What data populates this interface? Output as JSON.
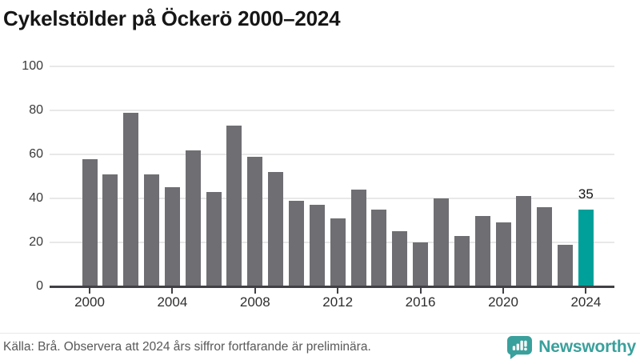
{
  "title": "Cykelstölder på Öckerö 2000–2024",
  "chart_data": {
    "type": "bar",
    "title": "Cykelstölder på Öckerö 2000–2024",
    "categories": [
      2000,
      2001,
      2002,
      2003,
      2004,
      2005,
      2006,
      2007,
      2008,
      2009,
      2010,
      2011,
      2012,
      2013,
      2014,
      2015,
      2016,
      2017,
      2018,
      2019,
      2020,
      2021,
      2022,
      2023,
      2024
    ],
    "values": [
      58,
      51,
      79,
      51,
      45,
      62,
      43,
      73,
      59,
      52,
      39,
      37,
      31,
      44,
      35,
      25,
      20,
      40,
      23,
      32,
      29,
      41,
      36,
      19,
      35
    ],
    "highlight_index": 24,
    "highlight_value_label": "35",
    "xlabel": "",
    "ylabel": "",
    "ylim": [
      0,
      100
    ],
    "yticks": [
      0,
      20,
      40,
      60,
      80,
      100
    ],
    "xtick_years": [
      2000,
      2004,
      2008,
      2012,
      2016,
      2020,
      2024
    ],
    "grid": true,
    "legend": "none",
    "colors": {
      "bar": "#6e6e73",
      "highlight": "#00a09a",
      "axis": "#404045",
      "grid": "#e8e8e8"
    }
  },
  "footer": {
    "source_text": "Källa: Brå. Observera att 2024 års siffror fortfarande är preliminära.",
    "brand_name": "Newsworthy",
    "brand_color": "#3aa09c",
    "logo_icon": "bar-chart-speech-bubble"
  }
}
